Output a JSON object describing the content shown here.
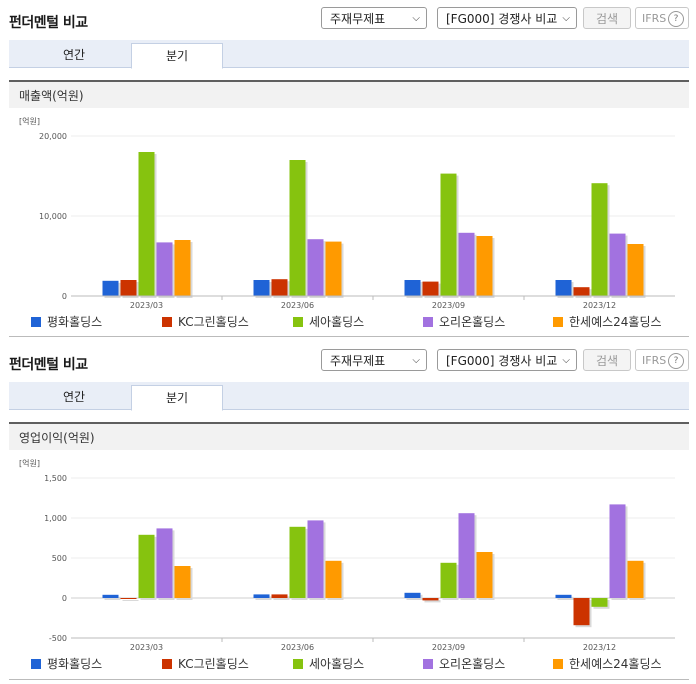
{
  "series": [
    {
      "name": "평화홀딩스",
      "color": "#1f63d6"
    },
    {
      "name": "KC그린홀딩스",
      "color": "#cc3300"
    },
    {
      "name": "세아홀딩스",
      "color": "#86c30f"
    },
    {
      "name": "오리온홀딩스",
      "color": "#a272e0"
    },
    {
      "name": "한세예스24홀딩스",
      "color": "#ff9a00"
    }
  ],
  "sections": [
    {
      "title": "펀더멘털 비교",
      "statement_select": "주재무제표",
      "compare_select": "[FG000] 경쟁사 비교",
      "search_label": "검색",
      "ifrs_label": "IFRS",
      "ifrs_help": "?",
      "tabs": [
        "연간",
        "분기"
      ],
      "active_tab": 1,
      "metric_label": "매출액(억원)",
      "chart_data": {
        "type": "bar",
        "unit": "[억원]",
        "categories": [
          "2023/03",
          "2023/06",
          "2023/09",
          "2023/12"
        ],
        "ylim": [
          0,
          20000
        ],
        "yticks": [
          "0",
          "10,000",
          "20,000"
        ],
        "ytick_values": [
          0,
          10000,
          20000
        ],
        "series": [
          {
            "name": "평화홀딩스",
            "values": [
              1900,
              2000,
              2000,
              2000
            ]
          },
          {
            "name": "KC그린홀딩스",
            "values": [
              2000,
              2100,
              1800,
              1100
            ]
          },
          {
            "name": "세아홀딩스",
            "values": [
              18000,
              17000,
              15300,
              14100
            ]
          },
          {
            "name": "오리온홀딩스",
            "values": [
              6700,
              7100,
              7900,
              7800
            ]
          },
          {
            "name": "한세예스24홀딩스",
            "values": [
              7000,
              6800,
              7500,
              6500
            ]
          }
        ]
      }
    },
    {
      "title": "펀더멘털 비교",
      "statement_select": "주재무제표",
      "compare_select": "[FG000] 경쟁사 비교",
      "search_label": "검색",
      "ifrs_label": "IFRS",
      "ifrs_help": "?",
      "tabs": [
        "연간",
        "분기"
      ],
      "active_tab": 1,
      "metric_label": "영업이익(억원)",
      "chart_data": {
        "type": "bar",
        "unit": "[억원]",
        "categories": [
          "2023/03",
          "2023/06",
          "2023/09",
          "2023/12"
        ],
        "ylim": [
          -500,
          1500
        ],
        "yticks": [
          "-500",
          "0",
          "500",
          "1,000",
          "1,500"
        ],
        "ytick_values": [
          -500,
          0,
          500,
          1000,
          1500
        ],
        "series": [
          {
            "name": "평화홀딩스",
            "values": [
              40,
              45,
              65,
              40
            ]
          },
          {
            "name": "KC그린홀딩스",
            "values": [
              0,
              45,
              -30,
              -340
            ]
          },
          {
            "name": "세아홀딩스",
            "values": [
              790,
              890,
              440,
              -110
            ]
          },
          {
            "name": "오리온홀딩스",
            "values": [
              870,
              970,
              1060,
              1170
            ]
          },
          {
            "name": "한세예스24홀딩스",
            "values": [
              400,
              465,
              575,
              465
            ]
          }
        ]
      }
    }
  ]
}
